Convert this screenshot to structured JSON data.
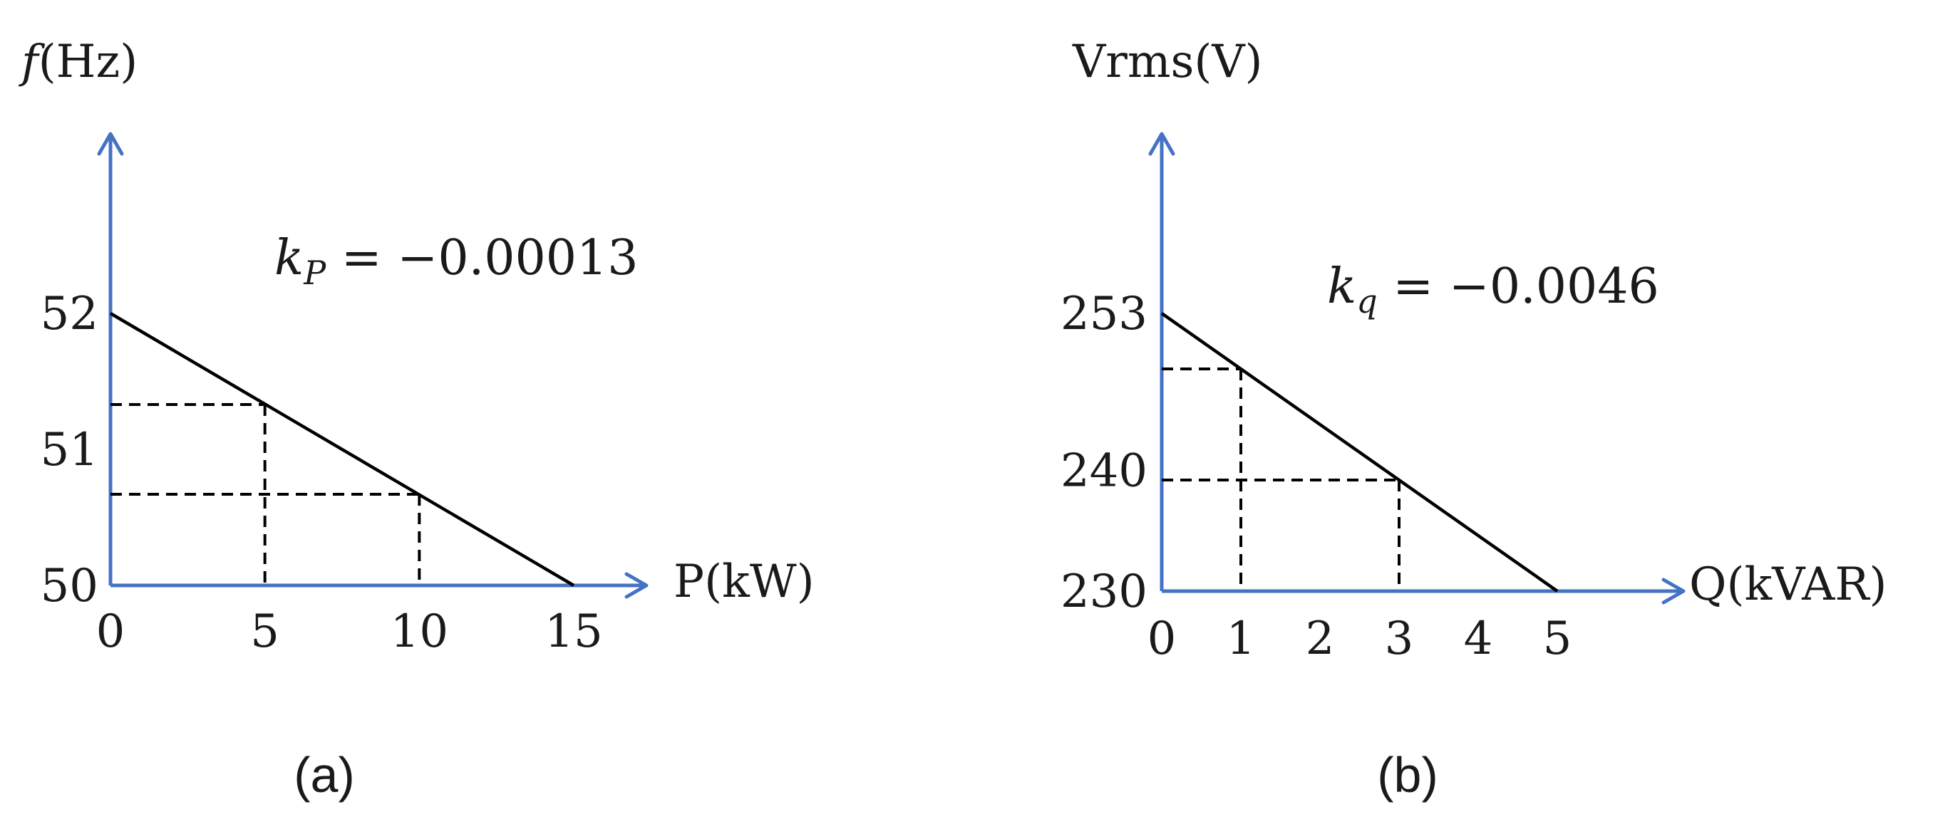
{
  "colors": {
    "axis": "#4472C4",
    "line": "#000000",
    "text": "#1a1a1a"
  },
  "chart_data": [
    {
      "type": "line",
      "panel_label": "(a)",
      "y_axis_label": {
        "symbol": "f",
        "unit": "(Hz)"
      },
      "x_axis_label": "P(kW)",
      "annotation": {
        "base": "k",
        "sub": "P",
        "rest": " = −0.00013"
      },
      "x_ticks": [
        {
          "v": 0,
          "t": "0"
        },
        {
          "v": 5,
          "t": "5"
        },
        {
          "v": 10,
          "t": "10"
        },
        {
          "v": 15,
          "t": "15"
        }
      ],
      "y_ticks": [
        {
          "v": 50,
          "t": "50"
        },
        {
          "v": 51,
          "t": "51"
        },
        {
          "v": 52,
          "t": "52"
        }
      ],
      "xlim": [
        0,
        15
      ],
      "ylim": [
        50,
        52
      ],
      "series": [
        {
          "x": [
            0,
            15
          ],
          "y": [
            52,
            50
          ]
        }
      ],
      "guides": [
        {
          "x": 5,
          "y": 51.33
        },
        {
          "x": 10,
          "y": 50.67
        }
      ]
    },
    {
      "type": "line",
      "panel_label": "(b)",
      "y_axis_label": {
        "text": "Vrms(V)"
      },
      "x_axis_label": "Q(kVAR)",
      "annotation": {
        "base": "k",
        "sub": "q",
        "rest": " = −0.0046"
      },
      "x_ticks": [
        {
          "v": 0,
          "t": "0"
        },
        {
          "v": 1,
          "t": "1"
        },
        {
          "v": 2,
          "t": "2"
        },
        {
          "v": 3,
          "t": "3"
        },
        {
          "v": 4,
          "t": "4"
        },
        {
          "v": 5,
          "t": "5"
        }
      ],
      "y_ticks": [
        {
          "v": 230,
          "t": "230"
        },
        {
          "v": 240,
          "t": "240"
        },
        {
          "v": 253,
          "t": "253"
        }
      ],
      "xlim": [
        0,
        5
      ],
      "ylim": [
        230,
        253
      ],
      "series": [
        {
          "x": [
            0,
            5
          ],
          "y": [
            253,
            230
          ]
        }
      ],
      "guides": [
        {
          "x": 1,
          "y": 248.4
        },
        {
          "x": 3,
          "y": 239.2
        }
      ]
    }
  ]
}
